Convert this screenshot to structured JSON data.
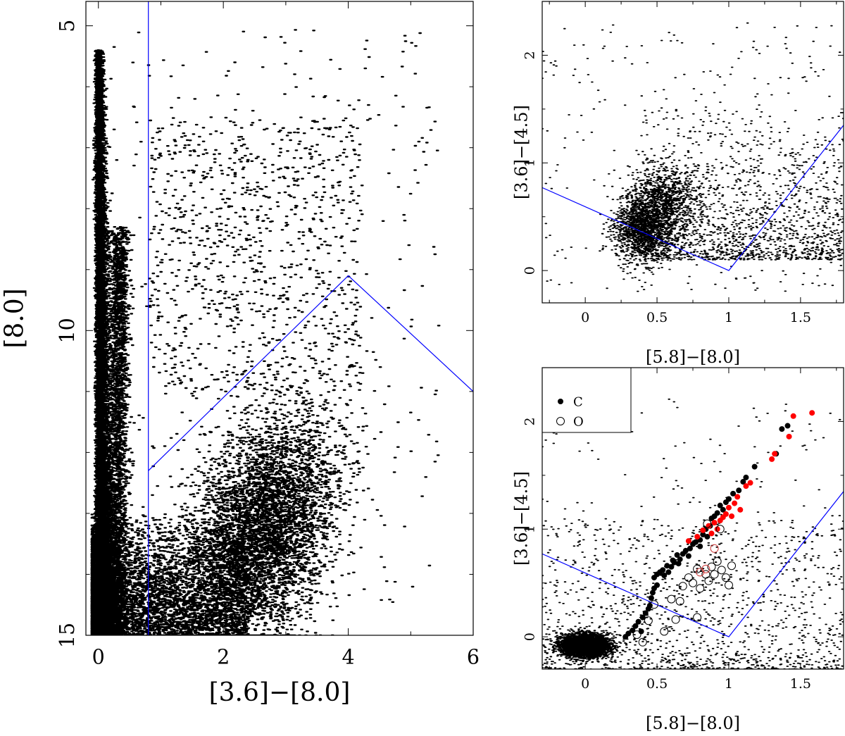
{
  "colors": {
    "points": "#000000",
    "selection_line": "#0000ff",
    "carbon_highlight": "#ff0000",
    "oxygen_highlight": "#cc3333"
  },
  "chart_data": [
    {
      "id": "cmd",
      "type": "scatter",
      "title": "",
      "xlabel": "[3.6]−[8.0]",
      "ylabel": "[8.0]",
      "xlim": [
        -0.2,
        6
      ],
      "ylim": [
        15,
        4.6
      ],
      "y_inverted": true,
      "xticks_major": [
        0,
        2,
        4,
        6
      ],
      "xticks_minor": [
        1,
        3,
        5
      ],
      "yticks_major": [
        5,
        10,
        15
      ],
      "yticks_minor": [
        6,
        7,
        8,
        9,
        11,
        12,
        13,
        14
      ],
      "grid": false,
      "series": [
        {
          "kind": "field_stars",
          "marker": "dot",
          "count_estimate": 30000
        },
        {
          "kind": "selection_boundary",
          "line": [
            [
              0.8,
              4.6
            ],
            [
              0.8,
              15
            ]
          ]
        },
        {
          "kind": "selection_boundary",
          "line": [
            [
              0.8,
              12.3
            ],
            [
              4,
              9.1
            ],
            [
              6,
              11.0
            ]
          ]
        }
      ]
    },
    {
      "id": "ccd_all",
      "type": "scatter",
      "title": "",
      "xlabel": "[5.8]−[8.0]",
      "ylabel": "[3.6]−[4.5]",
      "xlim": [
        -0.3,
        1.8
      ],
      "ylim": [
        -0.3,
        2.5
      ],
      "xticks_major": [
        0,
        0.5,
        1,
        1.5
      ],
      "xticks_minor": [
        -0.25,
        0.25,
        0.75,
        1.25,
        1.75
      ],
      "yticks_major": [
        0,
        1,
        2
      ],
      "yticks_minor": [
        0.5,
        1.5
      ],
      "grid": false,
      "series": [
        {
          "kind": "selected_stars",
          "marker": "dot",
          "count_estimate": 3000
        },
        {
          "kind": "selection_boundary",
          "line": [
            [
              -0.3,
              0.77
            ],
            [
              1.0,
              0.0
            ],
            [
              1.8,
              1.35
            ]
          ]
        }
      ]
    },
    {
      "id": "ccd_spec",
      "type": "scatter",
      "title": "",
      "xlabel": "[5.8]−[8.0]",
      "ylabel": "[3.6]−[4.5]",
      "xlim": [
        -0.3,
        1.8
      ],
      "ylim": [
        -0.3,
        2.5
      ],
      "xticks_major": [
        0,
        0.5,
        1,
        1.5
      ],
      "xticks_minor": [
        -0.25,
        0.25,
        0.75,
        1.25,
        1.75
      ],
      "yticks_major": [
        0,
        1,
        2
      ],
      "yticks_minor": [
        0.5,
        1.5
      ],
      "grid": false,
      "legend": {
        "position": "top-left",
        "entries": [
          {
            "label": "C",
            "marker": "filled-circle"
          },
          {
            "label": "O",
            "marker": "open-circle"
          }
        ]
      },
      "series": [
        {
          "kind": "field_stars",
          "marker": "dot",
          "count_estimate": 6000
        },
        {
          "kind": "selection_boundary",
          "line": [
            [
              -0.3,
              0.77
            ],
            [
              1.0,
              0.0
            ],
            [
              1.8,
              1.35
            ]
          ]
        },
        {
          "name": "C",
          "marker": "filled-circle",
          "color": "#000000",
          "points": [
            [
              0.28,
              0.0
            ],
            [
              0.3,
              0.03
            ],
            [
              0.33,
              0.06
            ],
            [
              0.35,
              0.1
            ],
            [
              0.37,
              0.14
            ],
            [
              0.39,
              0.05
            ],
            [
              0.4,
              0.18
            ],
            [
              0.42,
              0.22
            ],
            [
              0.44,
              0.26
            ],
            [
              0.45,
              0.29
            ],
            [
              0.46,
              0.36
            ],
            [
              0.47,
              0.41
            ],
            [
              0.48,
              0.45
            ],
            [
              0.5,
              0.48
            ],
            [
              0.48,
              0.55
            ],
            [
              0.5,
              0.58
            ],
            [
              0.52,
              0.6
            ],
            [
              0.54,
              0.62
            ],
            [
              0.55,
              0.57
            ],
            [
              0.57,
              0.66
            ],
            [
              0.58,
              0.6
            ],
            [
              0.6,
              0.65
            ],
            [
              0.61,
              0.71
            ],
            [
              0.62,
              0.69
            ],
            [
              0.64,
              0.76
            ],
            [
              0.65,
              0.68
            ],
            [
              0.66,
              0.72
            ],
            [
              0.68,
              0.77
            ],
            [
              0.7,
              0.8
            ],
            [
              0.72,
              0.75
            ],
            [
              0.73,
              0.82
            ],
            [
              0.75,
              0.86
            ],
            [
              0.77,
              0.88
            ],
            [
              0.8,
              0.9
            ],
            [
              0.8,
              0.84
            ],
            [
              0.82,
              0.95
            ],
            [
              0.84,
              1.0
            ],
            [
              0.85,
              0.93
            ],
            [
              0.87,
              1.03
            ],
            [
              0.88,
              1.1
            ],
            [
              0.9,
              1.12
            ],
            [
              0.92,
              1.15
            ],
            [
              0.94,
              1.22
            ],
            [
              0.96,
              1.18
            ],
            [
              0.98,
              1.25
            ],
            [
              1.0,
              1.28
            ],
            [
              1.03,
              1.33
            ],
            [
              1.07,
              1.36
            ],
            [
              1.1,
              1.44
            ],
            [
              1.12,
              1.48
            ],
            [
              1.18,
              1.58
            ],
            [
              1.33,
              1.7
            ],
            [
              1.37,
              1.93
            ],
            [
              1.41,
              1.96
            ]
          ]
        },
        {
          "name": "C",
          "marker": "filled-circle",
          "color": "#ff0000",
          "points": [
            [
              0.72,
              0.89
            ],
            [
              0.78,
              0.93
            ],
            [
              0.82,
              0.99
            ],
            [
              0.86,
              1.03
            ],
            [
              0.88,
              0.96
            ],
            [
              0.9,
              1.06
            ],
            [
              0.92,
              1.0
            ],
            [
              0.94,
              1.08
            ],
            [
              0.96,
              1.11
            ],
            [
              0.98,
              1.14
            ],
            [
              1.0,
              1.2
            ],
            [
              1.02,
              1.12
            ],
            [
              1.04,
              1.24
            ],
            [
              1.06,
              1.3
            ],
            [
              1.08,
              1.18
            ],
            [
              1.12,
              1.4
            ],
            [
              1.15,
              1.43
            ],
            [
              1.3,
              1.65
            ],
            [
              1.32,
              1.7
            ],
            [
              1.42,
              1.86
            ],
            [
              1.45,
              2.05
            ],
            [
              1.58,
              2.08
            ]
          ]
        },
        {
          "name": "O",
          "marker": "open-circle",
          "color": "#000000",
          "points": [
            [
              0.36,
              0.02
            ],
            [
              0.4,
              -0.05
            ],
            [
              0.44,
              0.15
            ],
            [
              0.48,
              0.3
            ],
            [
              0.55,
              0.05
            ],
            [
              0.6,
              0.35
            ],
            [
              0.66,
              0.33
            ],
            [
              0.68,
              0.47
            ],
            [
              0.72,
              0.55
            ],
            [
              0.75,
              0.5
            ],
            [
              0.78,
              0.63
            ],
            [
              0.8,
              0.45
            ],
            [
              0.84,
              0.58
            ],
            [
              0.86,
              0.52
            ],
            [
              0.88,
              0.65
            ],
            [
              0.9,
              0.58
            ],
            [
              0.92,
              0.7
            ],
            [
              0.95,
              0.62
            ],
            [
              0.98,
              0.55
            ],
            [
              1.0,
              0.48
            ],
            [
              1.02,
              0.66
            ],
            [
              0.94,
              1.0
            ],
            [
              0.85,
              1.05
            ],
            [
              0.78,
              0.18
            ],
            [
              0.63,
              0.16
            ]
          ]
        },
        {
          "name": "O",
          "marker": "open-circle",
          "color": "#cc3333",
          "points": [
            [
              0.8,
              0.6
            ],
            [
              0.84,
              0.63
            ],
            [
              0.9,
              0.82
            ]
          ]
        }
      ]
    }
  ]
}
